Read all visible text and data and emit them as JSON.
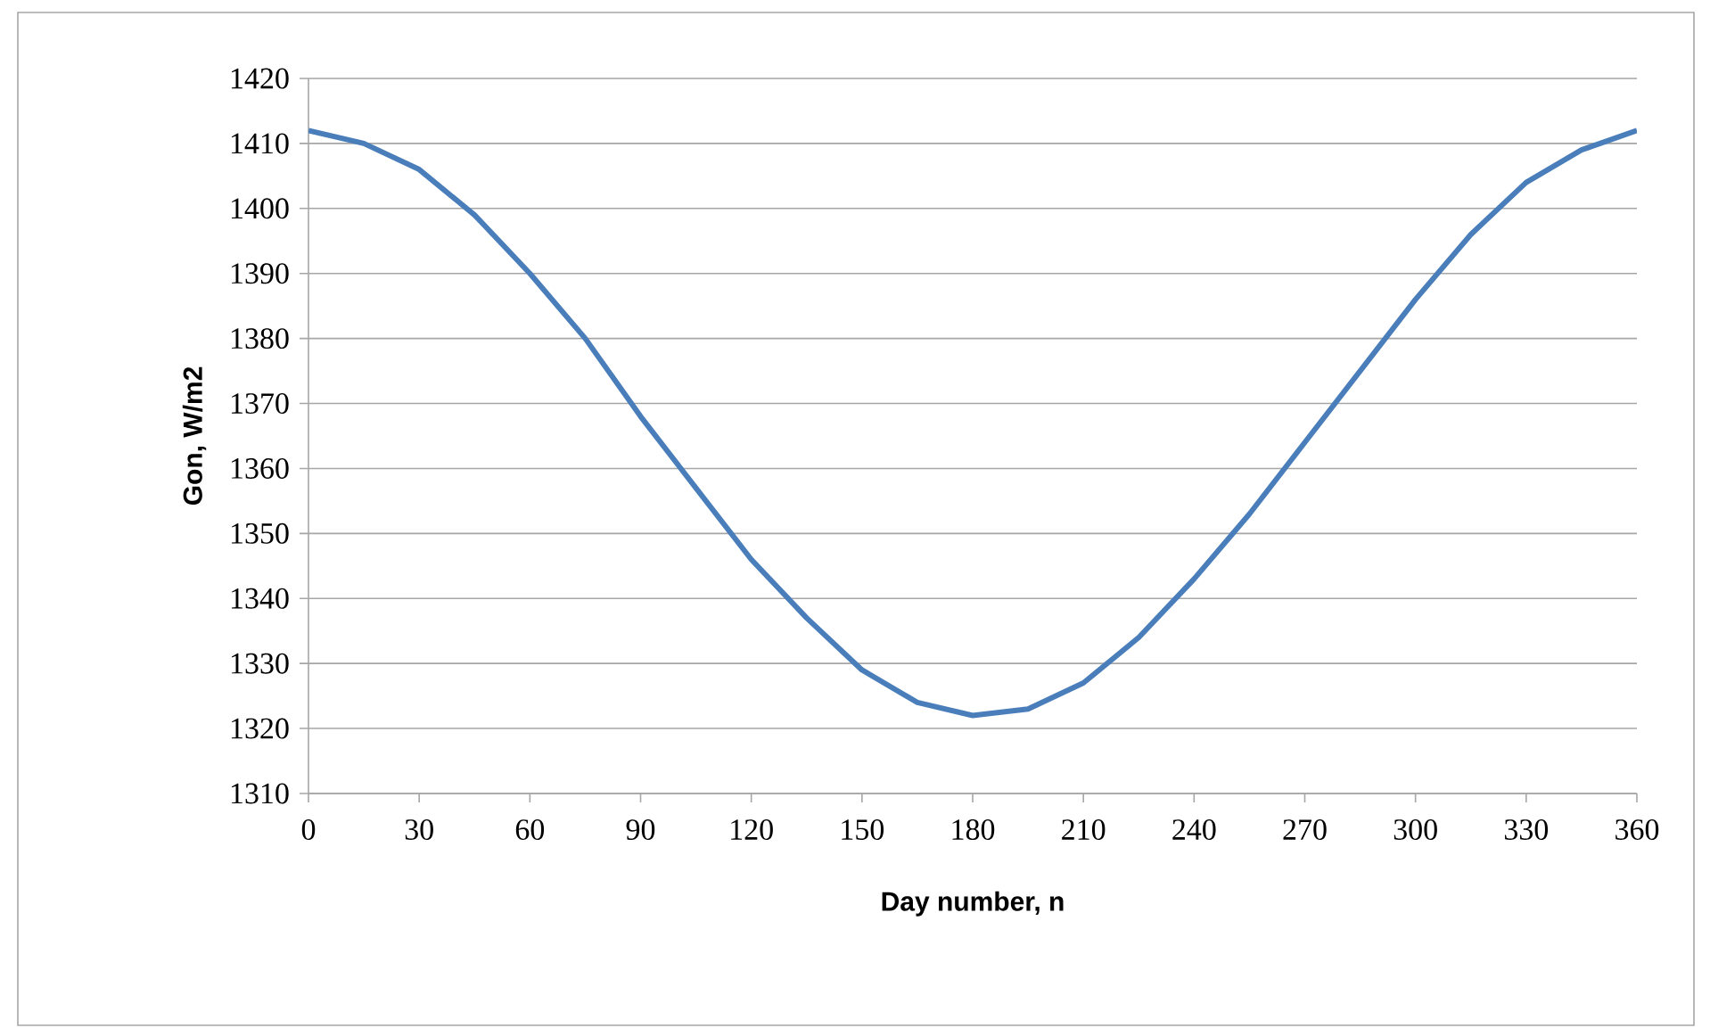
{
  "chart_data": {
    "type": "line",
    "xlabel": "Day number, n",
    "ylabel": "Gon, W/m2",
    "x": [
      0,
      15,
      30,
      45,
      60,
      75,
      90,
      105,
      120,
      135,
      150,
      165,
      180,
      195,
      210,
      225,
      240,
      255,
      270,
      285,
      300,
      315,
      330,
      345,
      360
    ],
    "series": [
      {
        "color": "#4a7ebb",
        "values": [
          1412,
          1410,
          1406,
          1399,
          1390,
          1380,
          1368,
          1357,
          1346,
          1337,
          1329,
          1324,
          1322,
          1323,
          1327,
          1334,
          1343,
          1353,
          1364,
          1375,
          1386,
          1396,
          1404,
          1409,
          1412
        ]
      }
    ],
    "xlim": [
      0,
      360
    ],
    "xticks": [
      0,
      30,
      60,
      90,
      120,
      150,
      180,
      210,
      240,
      270,
      300,
      330,
      360
    ],
    "ylim": [
      1310,
      1420
    ],
    "yticks": [
      1310,
      1320,
      1330,
      1340,
      1350,
      1360,
      1370,
      1380,
      1390,
      1400,
      1410,
      1420
    ],
    "grid": "y",
    "marker": "none",
    "line_style": "solid"
  }
}
